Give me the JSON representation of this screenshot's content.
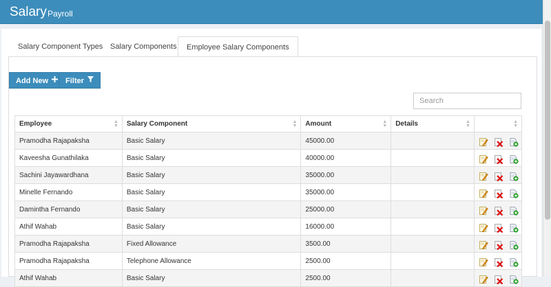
{
  "header": {
    "title": "Salary",
    "subtitle": "Payroll"
  },
  "tabs": [
    {
      "label": "Salary Component Types"
    },
    {
      "label": "Salary Components"
    },
    {
      "label": "Employee Salary Components"
    }
  ],
  "toolbar": {
    "add_label": "Add New",
    "filter_label": "Filter",
    "add_icon": "plus-icon",
    "filter_icon": "funnel-icon"
  },
  "search": {
    "placeholder": "Search",
    "value": ""
  },
  "table": {
    "columns": [
      "Employee",
      "Salary Component",
      "Amount",
      "Details"
    ],
    "rows": [
      {
        "employee": "Pramodha Rajapaksha",
        "component": "Basic Salary",
        "amount": "45000.00",
        "details": ""
      },
      {
        "employee": "Kaveesha Gunathilaka",
        "component": "Basic Salary",
        "amount": "40000.00",
        "details": ""
      },
      {
        "employee": "Sachini Jayawardhana",
        "component": "Basic Salary",
        "amount": "35000.00",
        "details": ""
      },
      {
        "employee": "Minelle Fernando",
        "component": "Basic Salary",
        "amount": "35000.00",
        "details": ""
      },
      {
        "employee": "Damintha Fernando",
        "component": "Basic Salary",
        "amount": "25000.00",
        "details": ""
      },
      {
        "employee": "Athif Wahab",
        "component": "Basic Salary",
        "amount": "16000.00",
        "details": ""
      },
      {
        "employee": "Pramodha Rajapaksha",
        "component": "Fixed Allowance",
        "amount": "3500.00",
        "details": ""
      },
      {
        "employee": "Pramodha Rajapaksha",
        "component": "Telephone Allowance",
        "amount": "2500.00",
        "details": ""
      },
      {
        "employee": "Athif Wahab",
        "component": "Basic Salary",
        "amount": "2500.00",
        "details": ""
      }
    ],
    "row_actions": [
      "edit-icon",
      "delete-icon",
      "copy-icon"
    ]
  },
  "colors": {
    "accent": "#3c8dbc",
    "row_stripe": "#f4f4f4",
    "border": "#dddddd"
  }
}
